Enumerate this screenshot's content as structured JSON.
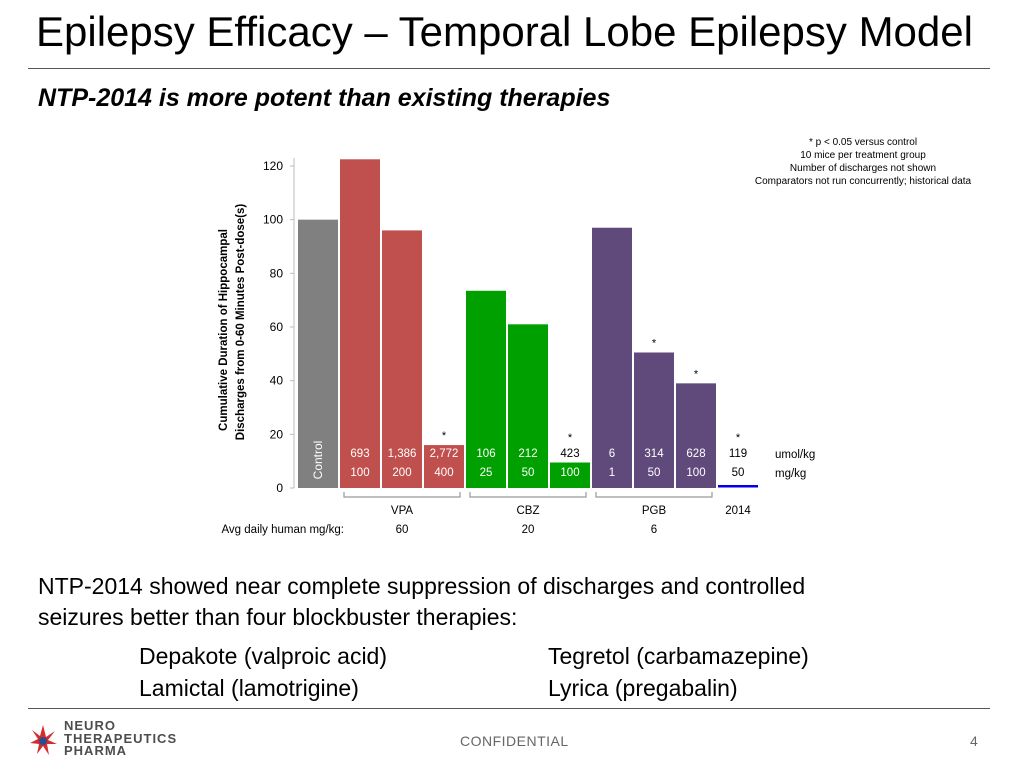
{
  "slide": {
    "title": "Epilepsy Efficacy – Temporal Lobe Epilepsy Model",
    "subtitle": "NTP-2014 is more potent than existing therapies",
    "notes": [
      "*    p < 0.05 versus control",
      "10 mice per treatment group",
      "Number of discharges not shown",
      "Comparators not run concurrently; historical data"
    ],
    "body_line1": "NTP-2014 showed near complete suppression of discharges and controlled",
    "body_line2": "seizures better than four blockbuster therapies:",
    "drugs": [
      "Depakote (valproic acid)",
      "Tegretol (carbamazepine)",
      "Lamictal (lamotrigine)",
      "Lyrica (pregabalin)"
    ],
    "footer": {
      "confidential": "CONFIDENTIAL",
      "page": "4",
      "logo_lines": [
        "NEURO",
        "THERAPEUTICS",
        "PHARMA"
      ]
    }
  },
  "colors": {
    "control": "#808080",
    "vpa": "#c0504d",
    "cbz": "#00a000",
    "pgb": "#604a7b",
    "ntp": "#0000ee"
  },
  "chart_data": {
    "type": "bar",
    "ylabel_line1": "Cumulative Duration of Hippocampal",
    "ylabel_line2": "Discharges from 0-60 Minutes Post-dose(s)",
    "ylim": [
      0,
      120
    ],
    "yticks": [
      0,
      20,
      40,
      60,
      80,
      100,
      120
    ],
    "unit_umol": "umol/kg",
    "unit_mg": "mg/kg",
    "control_label": "Control",
    "human_dose_label": "Avg daily human mg/kg:",
    "bars": [
      {
        "group": "control",
        "value": 100,
        "umol": "",
        "mg": "",
        "sig": false
      },
      {
        "group": "vpa",
        "value": 122.5,
        "umol": "693",
        "mg": "100",
        "sig": false
      },
      {
        "group": "vpa",
        "value": 96,
        "umol": "1,386",
        "mg": "200",
        "sig": false
      },
      {
        "group": "vpa",
        "value": 16,
        "umol": "2,772",
        "mg": "400",
        "sig": true
      },
      {
        "group": "cbz",
        "value": 73.5,
        "umol": "106",
        "mg": "25",
        "sig": false
      },
      {
        "group": "cbz",
        "value": 61,
        "umol": "212",
        "mg": "50",
        "sig": false
      },
      {
        "group": "cbz",
        "value": 9.5,
        "umol": "423",
        "mg": "100",
        "sig": true
      },
      {
        "group": "pgb",
        "value": 97,
        "umol": "6",
        "mg": "1",
        "sig": false
      },
      {
        "group": "pgb",
        "value": 50.5,
        "umol": "314",
        "mg": "50",
        "sig": true
      },
      {
        "group": "pgb",
        "value": 39,
        "umol": "628",
        "mg": "100",
        "sig": true
      },
      {
        "group": "ntp",
        "value": 0.5,
        "umol": "119",
        "mg": "50",
        "sig": true
      }
    ],
    "groups": [
      {
        "key": "vpa",
        "label": "VPA",
        "human": "60"
      },
      {
        "key": "cbz",
        "label": "CBZ",
        "human": "20"
      },
      {
        "key": "pgb",
        "label": "PGB",
        "human": "6"
      },
      {
        "key": "ntp",
        "label": "2014",
        "human": ""
      }
    ],
    "sig_marker": "*"
  }
}
